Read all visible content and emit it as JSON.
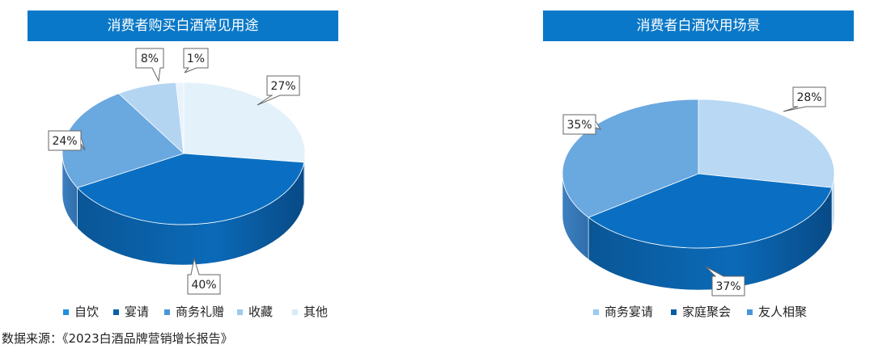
{
  "chart_data": [
    {
      "type": "pie",
      "title": "消费者购买白酒常见用途",
      "style": "3d",
      "categories": [
        "自饮",
        "宴请",
        "商务礼赠",
        "收藏",
        "其他"
      ],
      "values": [
        27,
        40,
        24,
        8,
        1
      ],
      "value_labels": [
        "27%",
        "40%",
        "24%",
        "8%",
        "1%"
      ],
      "colors": [
        "#e3f1fb",
        "#0a6fc2",
        "#6aa8e0",
        "#b4d5f2",
        "#e8f3fc"
      ],
      "legend": {
        "position": "bottom",
        "items": [
          {
            "label": "自饮",
            "color": "#1f8fe0"
          },
          {
            "label": "宴请",
            "color": "#0a5ea8"
          },
          {
            "label": "商务礼赠",
            "color": "#4a95d8"
          },
          {
            "label": "收藏",
            "color": "#9ccaf0"
          },
          {
            "label": "其他",
            "color": "#d6ebfa"
          }
        ]
      }
    },
    {
      "type": "pie",
      "title": "消费者白酒饮用场景",
      "style": "3d",
      "categories": [
        "商务宴请",
        "家庭聚会",
        "友人相聚"
      ],
      "values": [
        28,
        37,
        35
      ],
      "value_labels": [
        "28%",
        "37%",
        "35%"
      ],
      "colors": [
        "#b8d8f4",
        "#0a6fc2",
        "#6aa8e0"
      ],
      "legend": {
        "position": "bottom",
        "items": [
          {
            "label": "商务宴请",
            "color": "#9ccaf0"
          },
          {
            "label": "家庭聚会",
            "color": "#0a5ea8"
          },
          {
            "label": "友人相聚",
            "color": "#4a95d8"
          }
        ]
      }
    }
  ],
  "source_note": "数据来源：《2023白酒品牌营销增长报告》"
}
